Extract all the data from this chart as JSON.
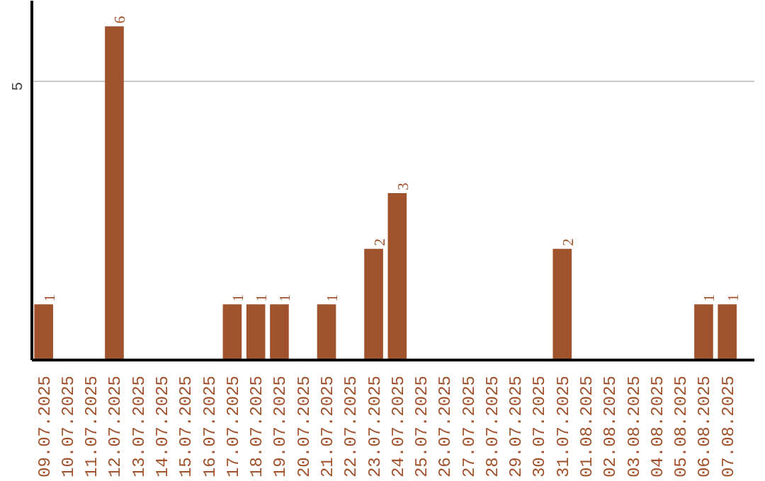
{
  "chart_data": {
    "type": "bar",
    "categories": [
      "09.07.2025",
      "10.07.2025",
      "11.07.2025",
      "12.07.2025",
      "13.07.2025",
      "14.07.2025",
      "15.07.2025",
      "16.07.2025",
      "17.07.2025",
      "18.07.2025",
      "19.07.2025",
      "20.07.2025",
      "21.07.2025",
      "22.07.2025",
      "23.07.2025",
      "24.07.2025",
      "25.07.2025",
      "26.07.2025",
      "27.07.2025",
      "28.07.2025",
      "29.07.2025",
      "30.07.2025",
      "31.07.2025",
      "01.08.2025",
      "02.08.2025",
      "03.08.2025",
      "04.08.2025",
      "05.08.2025",
      "06.08.2025",
      "07.08.2025"
    ],
    "values": [
      1,
      0,
      0,
      6,
      0,
      0,
      0,
      0,
      1,
      1,
      1,
      0,
      1,
      0,
      2,
      3,
      0,
      0,
      0,
      0,
      0,
      0,
      2,
      0,
      0,
      0,
      0,
      0,
      1,
      1
    ],
    "value_labels": [
      "1",
      null,
      null,
      "6",
      null,
      null,
      null,
      null,
      "1",
      "1",
      "1",
      null,
      "1",
      null,
      "2",
      "3",
      null,
      null,
      null,
      null,
      null,
      null,
      "2",
      null,
      null,
      null,
      null,
      null,
      "1",
      "1"
    ],
    "color": "#a0522d",
    "ylim": [
      0,
      6.46
    ],
    "yticks": [
      5
    ],
    "grid": "y"
  }
}
